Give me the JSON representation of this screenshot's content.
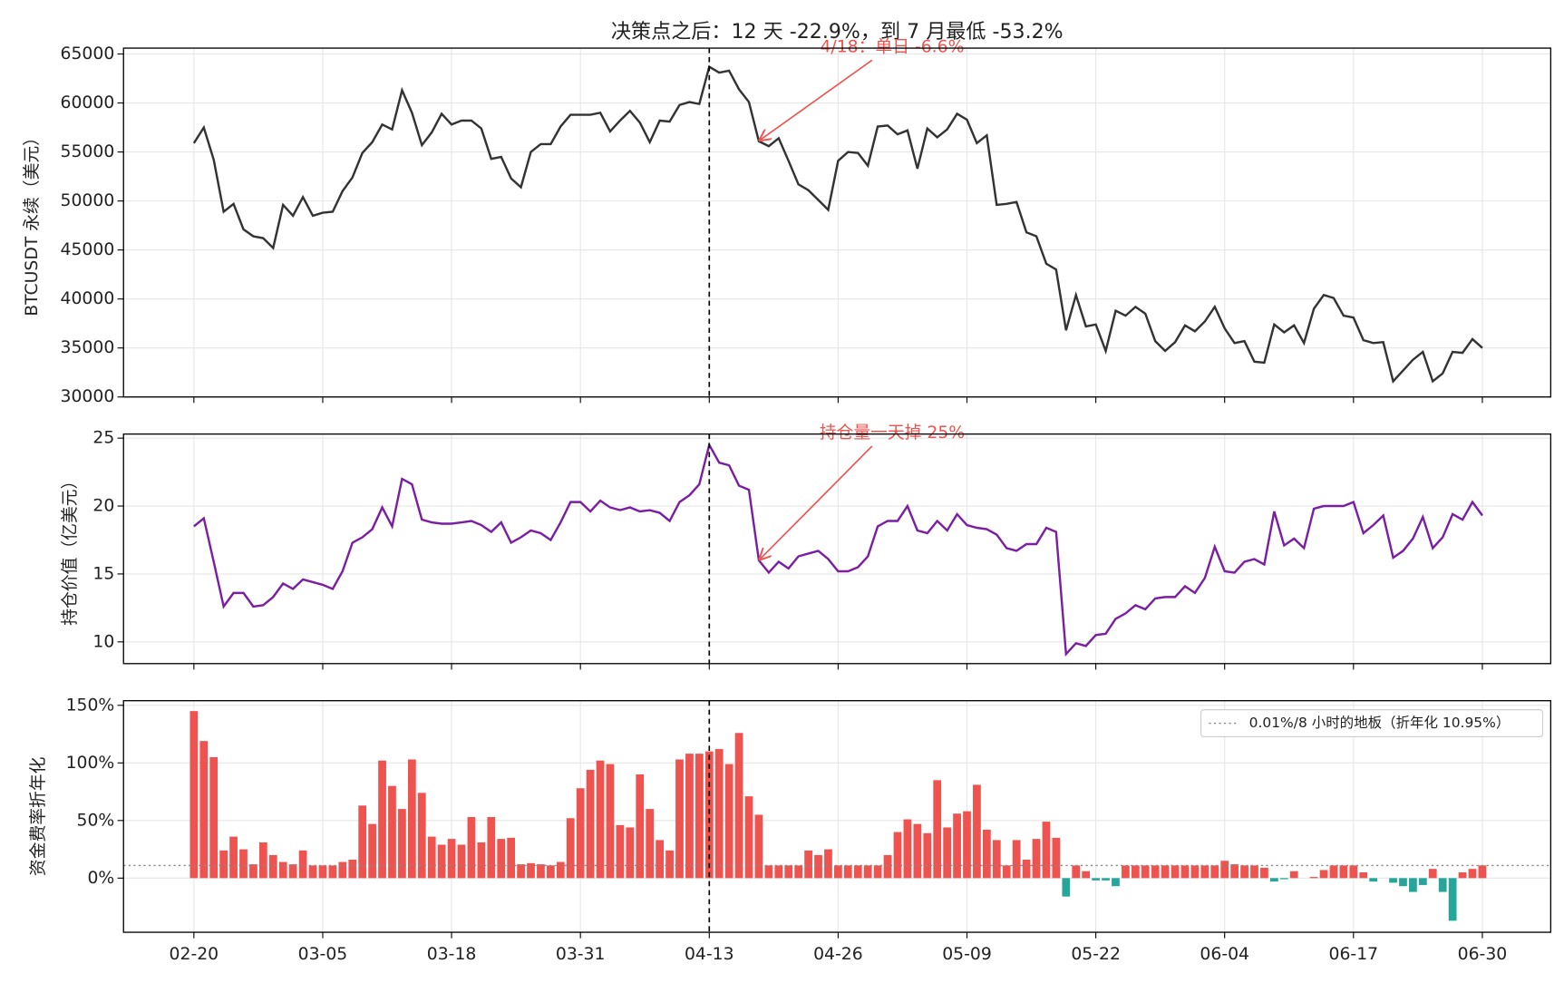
{
  "chart_data": {
    "title": "决策点之后：12 天 -22.9%，到 7 月最低 -53.2%",
    "x": [
      "02-20",
      "02-21",
      "02-22",
      "02-23",
      "02-24",
      "02-25",
      "02-26",
      "02-27",
      "02-28",
      "03-01",
      "03-02",
      "03-03",
      "03-04",
      "03-05",
      "03-06",
      "03-07",
      "03-08",
      "03-09",
      "03-10",
      "03-11",
      "03-12",
      "03-13",
      "03-14",
      "03-15",
      "03-16",
      "03-17",
      "03-18",
      "03-19",
      "03-20",
      "03-21",
      "03-22",
      "03-23",
      "03-24",
      "03-25",
      "03-26",
      "03-27",
      "03-28",
      "03-29",
      "03-30",
      "03-31",
      "04-01",
      "04-02",
      "04-03",
      "04-04",
      "04-05",
      "04-06",
      "04-07",
      "04-08",
      "04-09",
      "04-10",
      "04-11",
      "04-12",
      "04-13",
      "04-14",
      "04-15",
      "04-16",
      "04-17",
      "04-18",
      "04-19",
      "04-20",
      "04-21",
      "04-22",
      "04-23",
      "04-24",
      "04-25",
      "04-26",
      "04-27",
      "04-28",
      "04-29",
      "04-30",
      "05-01",
      "05-02",
      "05-03",
      "05-04",
      "05-05",
      "05-06",
      "05-07",
      "05-08",
      "05-09",
      "05-10",
      "05-11",
      "05-12",
      "05-13",
      "05-14",
      "05-15",
      "05-16",
      "05-17",
      "05-18",
      "05-19",
      "05-20",
      "05-21",
      "05-22",
      "05-23",
      "05-24",
      "05-25",
      "05-26",
      "05-27",
      "05-28",
      "05-29",
      "05-30",
      "05-31",
      "06-01",
      "06-02",
      "06-03",
      "06-04",
      "06-05",
      "06-06",
      "06-07",
      "06-08",
      "06-09",
      "06-10",
      "06-11",
      "06-12",
      "06-13",
      "06-14",
      "06-15",
      "06-16",
      "06-17",
      "06-18",
      "06-19",
      "06-20",
      "06-21",
      "06-22",
      "06-23",
      "06-24",
      "06-25",
      "06-26",
      "06-27",
      "06-28",
      "06-29",
      "06-30"
    ],
    "xticks": [
      "02-20",
      "03-05",
      "03-18",
      "03-31",
      "04-13",
      "04-26",
      "05-09",
      "05-22",
      "06-04",
      "06-17",
      "06-30"
    ],
    "xlim": [
      -7.1,
      136.9
    ],
    "decision_date": "04-13",
    "grid": true,
    "panels": [
      {
        "type": "line",
        "ylabel": "BTCUSDT 永续（美元）",
        "ylim": [
          30000,
          65600
        ],
        "yticks": [
          30000,
          35000,
          40000,
          45000,
          50000,
          55000,
          60000,
          65000
        ],
        "series": [
          {
            "color": "#333333",
            "values": [
              55900,
              57500,
              54200,
              48900,
              49700,
              47100,
              46400,
              46200,
              45200,
              49600,
              48500,
              50400,
              48500,
              48800,
              48900,
              51000,
              52400,
              54900,
              56000,
              57800,
              57300,
              61300,
              59000,
              55700,
              57000,
              58900,
              57800,
              58200,
              58200,
              57400,
              54300,
              54500,
              52300,
              51400,
              55000,
              55800,
              55800,
              57600,
              58800,
              58800,
              58800,
              59000,
              57100,
              58200,
              59200,
              58000,
              56000,
              58200,
              58100,
              59800,
              60100,
              59900,
              63700,
              63100,
              63300,
              61400,
              60100,
              56100,
              55600,
              56400,
              54100,
              51700,
              51100,
              50100,
              49100,
              54100,
              55000,
              54900,
              53600,
              57600,
              57700,
              56800,
              57200,
              53300,
              57400,
              56500,
              57300,
              58900,
              58300,
              55900,
              56700,
              49600,
              49700,
              49900,
              46800,
              46400,
              43600,
              43000,
              36800,
              40400,
              37200,
              37400,
              34700,
              38800,
              38300,
              39200,
              38500,
              35700,
              34700,
              35600,
              37300,
              36700,
              37700,
              39200,
              37000,
              35500,
              35700,
              33600,
              33500,
              37400,
              36600,
              37300,
              35500,
              39000,
              40400,
              40100,
              38300,
              38100,
              35800,
              35500,
              35600,
              31600,
              32700,
              33800,
              34600,
              31600,
              32400,
              34600,
              34500,
              35900,
              35000
            ]
          }
        ],
        "annotation": {
          "text": "4/18：单日 -6.6%",
          "at": "04-18",
          "color": "#ef5350"
        }
      },
      {
        "type": "line",
        "ylabel": "持仓价值（亿美元）",
        "ylim": [
          8.4,
          25.3
        ],
        "yticks": [
          10,
          15,
          20,
          25
        ],
        "series": [
          {
            "color": "#7b1fa2",
            "values": [
              18.5,
              19.1,
              15.9,
              12.6,
              13.6,
              13.6,
              12.6,
              12.7,
              13.3,
              14.3,
              13.9,
              14.6,
              14.4,
              14.2,
              13.9,
              15.2,
              17.3,
              17.7,
              18.3,
              19.9,
              18.5,
              22.0,
              21.6,
              19.0,
              18.8,
              18.7,
              18.7,
              18.8,
              18.9,
              18.6,
              18.1,
              18.8,
              17.3,
              17.7,
              18.2,
              18.0,
              17.5,
              18.8,
              20.3,
              20.3,
              19.6,
              20.4,
              19.9,
              19.7,
              19.9,
              19.6,
              19.7,
              19.5,
              18.9,
              20.3,
              20.8,
              21.6,
              24.5,
              23.2,
              23.0,
              21.5,
              21.2,
              16.0,
              15.1,
              15.9,
              15.4,
              16.3,
              16.5,
              16.7,
              16.1,
              15.2,
              15.2,
              15.5,
              16.3,
              18.5,
              18.9,
              18.9,
              20.0,
              18.2,
              18.0,
              18.9,
              18.2,
              19.4,
              18.6,
              18.4,
              18.3,
              17.9,
              16.9,
              16.7,
              17.2,
              17.2,
              18.4,
              18.1,
              9.1,
              9.9,
              9.7,
              10.5,
              10.6,
              11.7,
              12.1,
              12.7,
              12.4,
              13.2,
              13.3,
              13.3,
              14.1,
              13.6,
              14.7,
              17.0,
              15.2,
              15.1,
              15.9,
              16.1,
              15.7,
              19.6,
              17.1,
              17.6,
              16.9,
              19.8,
              20.0,
              20.0,
              20.0,
              20.3,
              18.0,
              18.6,
              19.3,
              16.2,
              16.7,
              17.6,
              19.2,
              16.9,
              17.7,
              19.4,
              19.0,
              20.3,
              19.3
            ]
          }
        ],
        "annotation": {
          "text": "持仓量一天掉 25%",
          "at": "04-18",
          "color": "#ef5350"
        }
      },
      {
        "type": "bar",
        "ylabel": "资金费率折年化",
        "ylim": [
          -47,
          154
        ],
        "yticks": [
          {
            "value": 0,
            "label": "0%"
          },
          {
            "value": 50,
            "label": "50%"
          },
          {
            "value": 100,
            "label": "100%"
          },
          {
            "value": 150,
            "label": "150%"
          }
        ],
        "positive_color": "#ef5350",
        "negative_color": "#26a69a",
        "floor": {
          "value": 10.95,
          "label": "0.01%/8 小时的地板（折年化 10.95%）",
          "color": "#888888"
        },
        "legend": "upper right",
        "series": [
          {
            "values": [
              145,
              119,
              105,
              24,
              36,
              25,
              12,
              31,
              20,
              14,
              12,
              24,
              11,
              11,
              11,
              14,
              16,
              63,
              47,
              102,
              80,
              60,
              103,
              74,
              36,
              29,
              34,
              29,
              53,
              31,
              53,
              34,
              35,
              12,
              13,
              12,
              11,
              14,
              52,
              78,
              94,
              102,
              99,
              46,
              44,
              90,
              60,
              33,
              24,
              103,
              108,
              108,
              110,
              112,
              99,
              126,
              71,
              55,
              11,
              11,
              11,
              11,
              24,
              20,
              25,
              11,
              11,
              11,
              11,
              11,
              20,
              40,
              51,
              47,
              39,
              85,
              44,
              56,
              58,
              81,
              42,
              33,
              11,
              33,
              16,
              34,
              49,
              35,
              -16,
              11,
              6,
              -2,
              -2,
              -7,
              11,
              11,
              11,
              11,
              11,
              11,
              11,
              11,
              11,
              11,
              15,
              12,
              11,
              11,
              9,
              -3,
              -1,
              6,
              0,
              1,
              7,
              11,
              11,
              11,
              5,
              -3,
              0,
              -4,
              -7,
              -12,
              -6,
              8,
              -12,
              -37,
              5,
              8,
              11
            ]
          }
        ]
      }
    ]
  }
}
